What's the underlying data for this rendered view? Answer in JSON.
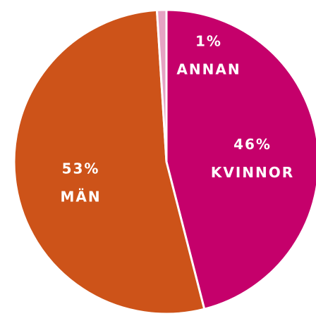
{
  "chart_data": {
    "type": "pie",
    "categories": [
      "KVINNOR",
      "MÄN",
      "ANNAN"
    ],
    "values": [
      46,
      53,
      1
    ],
    "value_labels": [
      "46%",
      "53%",
      "1%"
    ],
    "colors": [
      "#c5006b",
      "#cd5319",
      "#e6a3c3"
    ]
  }
}
